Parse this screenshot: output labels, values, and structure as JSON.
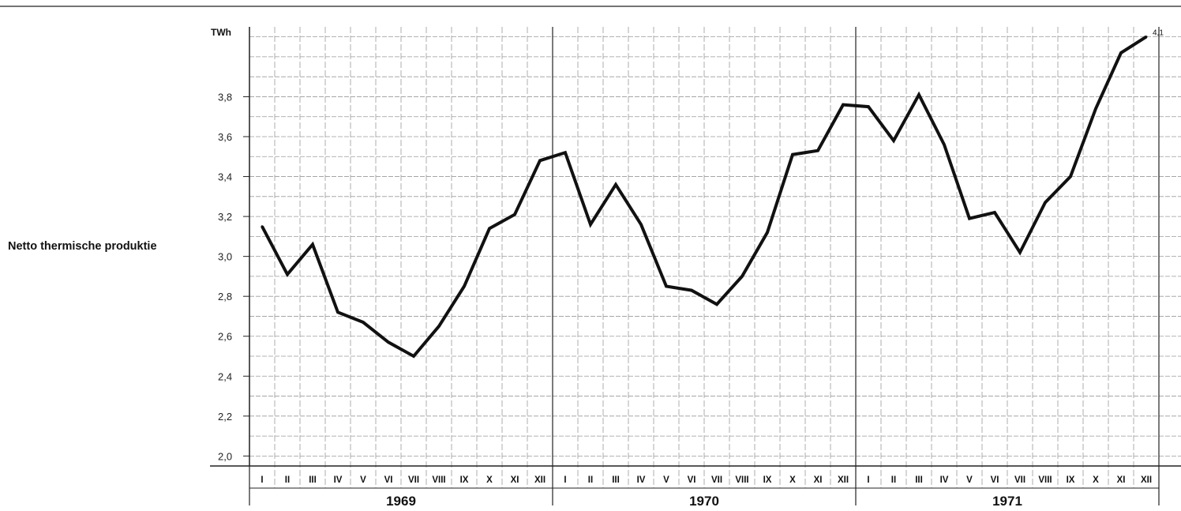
{
  "chart_data": {
    "type": "line",
    "title": "",
    "row_label": "Netto thermische produktie",
    "y_unit": "TWh",
    "ylim": [
      1.95,
      4.15
    ],
    "y_ticks": [
      "2,0",
      "2,2",
      "2,4",
      "2,6",
      "2,8",
      "3,0",
      "3,2",
      "3,4",
      "3,6",
      "3,8"
    ],
    "y_tick_values": [
      2.0,
      2.2,
      2.4,
      2.6,
      2.8,
      3.0,
      3.2,
      3.4,
      3.6,
      3.8
    ],
    "months": [
      "I",
      "II",
      "III",
      "IV",
      "V",
      "VI",
      "VII",
      "VIII",
      "IX",
      "X",
      "XI",
      "XII"
    ],
    "years": [
      "1969",
      "1970",
      "1971"
    ],
    "end_label": "4,1",
    "grid": true,
    "series": [
      {
        "values": [
          3.15,
          2.91,
          3.06,
          2.72,
          2.67,
          2.57,
          2.5,
          2.65,
          2.85,
          3.14,
          3.21,
          3.48,
          3.52,
          3.16,
          3.36,
          3.16,
          2.85,
          2.83,
          2.76,
          2.9,
          3.12,
          3.51,
          3.53,
          3.76,
          3.75,
          3.58,
          3.81,
          3.56,
          3.19,
          3.22,
          3.02,
          3.27,
          3.4,
          3.74,
          4.02,
          4.1
        ]
      }
    ],
    "colors": {
      "line": "#111111",
      "grid": "#9a9a9a",
      "axis": "#222222"
    }
  }
}
